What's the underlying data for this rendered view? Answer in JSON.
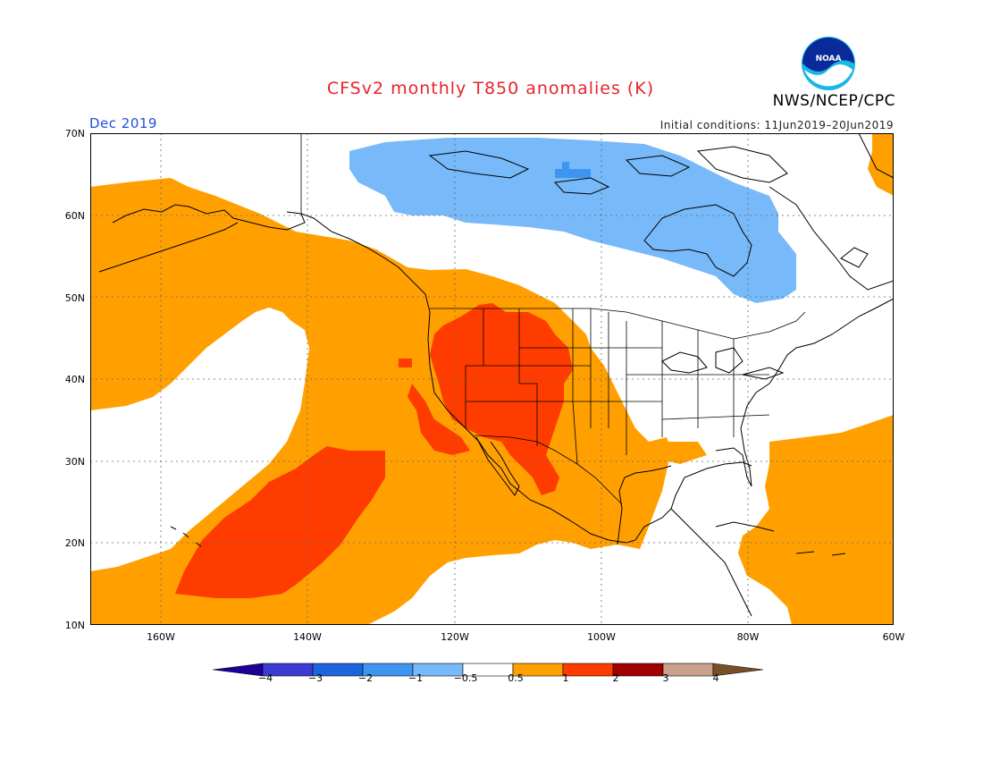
{
  "title": "CFSv2 monthly T850 anomalies (K)",
  "agency": "NWS/NCEP/CPC",
  "month_label": "Dec 2019",
  "initial_conditions": "Initial conditions: 11Jun2019–20Jun2019",
  "logo_text": "NOAA",
  "lat_labels": [
    "70N",
    "60N",
    "50N",
    "40N",
    "30N",
    "20N",
    "10N"
  ],
  "lon_labels": [
    "160W",
    "140W",
    "120W",
    "100W",
    "80W",
    "60W"
  ],
  "colorbar": {
    "labels": [
      "−4",
      "−3",
      "−2",
      "−1",
      "−0.5",
      "0.5",
      "1",
      "2",
      "3",
      "4"
    ],
    "colors": [
      "#1e0096",
      "#3c3cd2",
      "#1e64dc",
      "#3c96f0",
      "#78b9fa",
      "#ffffff",
      "#ffa000",
      "#ff3c00",
      "#a00000",
      "#c8a08c",
      "#785028"
    ]
  },
  "map_colors": {
    "pos_05_1": "#ffa000",
    "pos_1_2": "#ff3c00",
    "neg_05_1": "#78b9fa",
    "neg_1_2": "#3c96f0",
    "coast": "#000000"
  }
}
